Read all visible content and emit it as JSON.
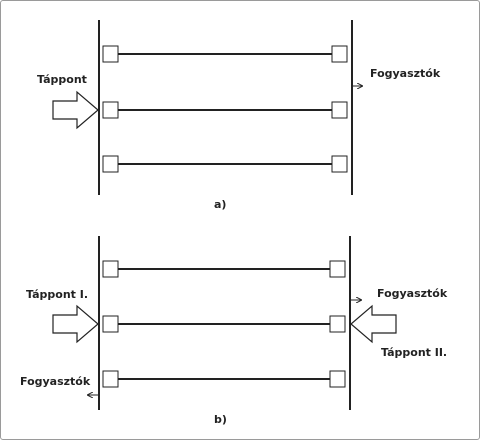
{
  "diagram_a": {
    "caption": "a)",
    "supply_label": "Táppont",
    "consumers_label": "Fogyasztók"
  },
  "diagram_b": {
    "caption": "b)",
    "supply1_label": "Táppont I.",
    "supply2_label": "Táppont II.",
    "consumers_right_label": "Fogyasztók",
    "consumers_left_label": "Fogyasztók"
  },
  "colors": {
    "line": "#222222",
    "arrow_fill": "#ffffff",
    "box_fill": "#ffffff",
    "border": "#9a9a9a"
  },
  "icons": {
    "supply": "block-arrow-icon",
    "consumer": "small-arrow-icon",
    "switch": "square-switch-icon"
  }
}
